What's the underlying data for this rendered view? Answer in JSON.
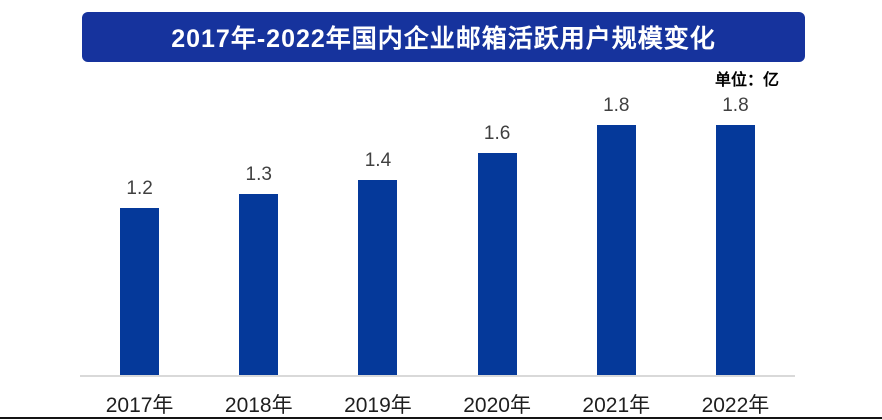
{
  "header": {
    "title": "2017年-2022年国内企业邮箱活跃用户规模变化",
    "unit_label": "单位：亿"
  },
  "colors": {
    "background": "#FFFFFF",
    "banner_bg": "#16339D",
    "banner_text": "#FFFFFF",
    "bar": "#05399A",
    "value_label": "#404040",
    "axis_label": "#1F1F1F",
    "axis_line": "#D9D9D9",
    "bottom_border": "#141414"
  },
  "chart_data": {
    "type": "bar",
    "title": "2017年-2022年国内企业邮箱活跃用户规模变化",
    "unit": "亿",
    "categories": [
      "2017年",
      "2018年",
      "2019年",
      "2020年",
      "2021年",
      "2022年"
    ],
    "values": [
      1.2,
      1.3,
      1.4,
      1.6,
      1.8,
      1.8
    ],
    "xlabel": "",
    "ylabel": "",
    "ylim": [
      0,
      1.9
    ],
    "grid": false,
    "legend_position": "none",
    "value_labels_shown": true
  }
}
